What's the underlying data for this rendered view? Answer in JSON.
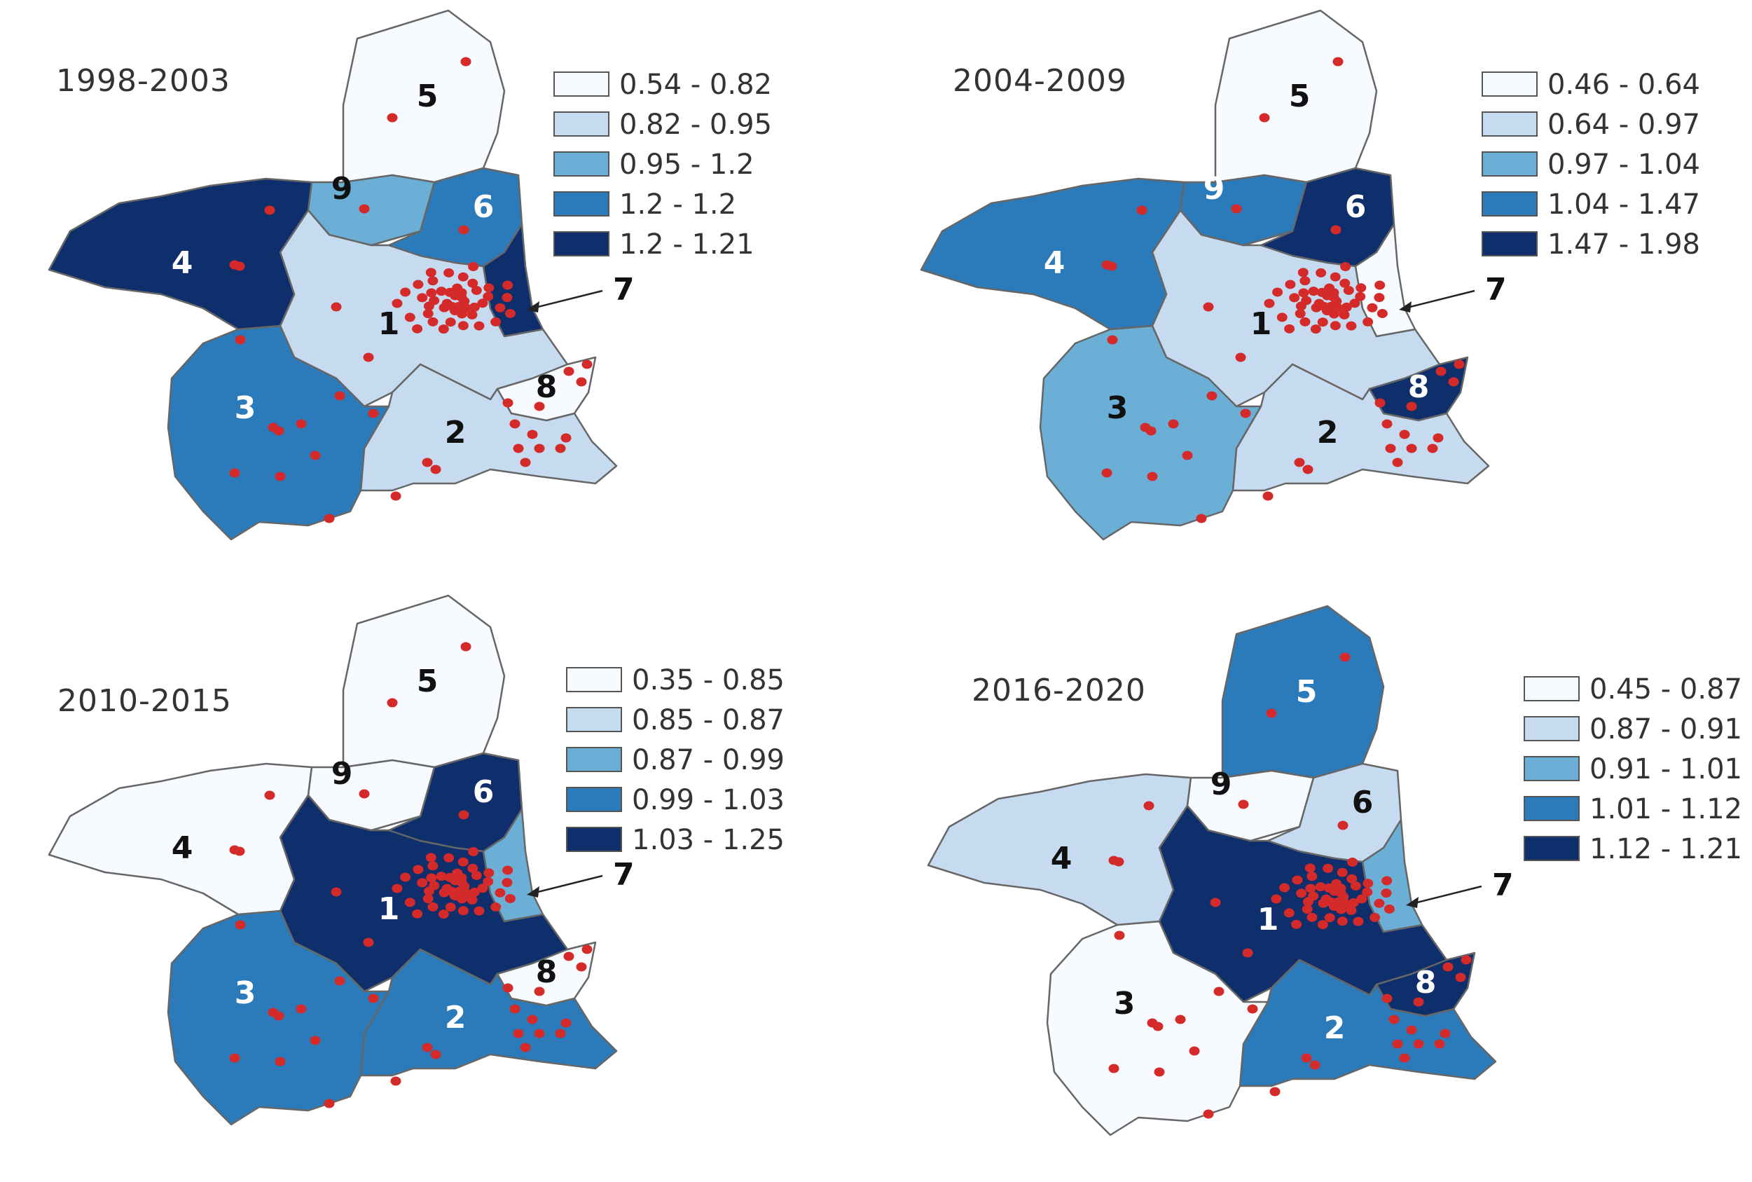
{
  "colors": {
    "class1": "#f7fbff",
    "class2": "#c6dbef",
    "class3": "#6baed6",
    "class4": "#2b7bba",
    "class5": "#0e2f6b",
    "border": "#666666",
    "dot": "#d42a2a"
  },
  "maps": [
    {
      "title": "1998-2003",
      "legend": [
        "0.54 - 0.82",
        "0.82 - 0.95",
        "0.95 - 1.2",
        "1.2 - 1.2",
        "1.2 - 1.21"
      ],
      "regions": {
        "1": 2,
        "2": 2,
        "3": 4,
        "4": 5,
        "5": 1,
        "6": 4,
        "7": 5,
        "8": 1,
        "9": 3
      }
    },
    {
      "title": "2004-2009",
      "legend": [
        "0.46 - 0.64",
        "0.64 - 0.97",
        "0.97 - 1.04",
        "1.04 - 1.47",
        "1.47 - 1.98"
      ],
      "regions": {
        "1": 2,
        "2": 2,
        "3": 3,
        "4": 4,
        "5": 1,
        "6": 5,
        "7": 1,
        "8": 5,
        "9": 4
      }
    },
    {
      "title": "2010-2015",
      "legend": [
        "0.35 - 0.85",
        "0.85 - 0.87",
        "0.87 - 0.99",
        "0.99 - 1.03",
        "1.03 - 1.25"
      ],
      "regions": {
        "1": 5,
        "2": 4,
        "3": 4,
        "4": 1,
        "5": 1,
        "6": 5,
        "7": 3,
        "8": 1,
        "9": 1
      }
    },
    {
      "title": "2016-2020",
      "legend": [
        "0.45 - 0.87",
        "0.87 - 0.91",
        "0.91 - 1.01",
        "1.01 - 1.12",
        "1.12 - 1.21"
      ],
      "regions": {
        "1": 5,
        "2": 4,
        "3": 1,
        "4": 2,
        "5": 4,
        "6": 2,
        "7": 3,
        "8": 5,
        "9": 1
      }
    }
  ],
  "region_labels": [
    "1",
    "2",
    "3",
    "4",
    "5",
    "6",
    "7",
    "8",
    "9"
  ]
}
